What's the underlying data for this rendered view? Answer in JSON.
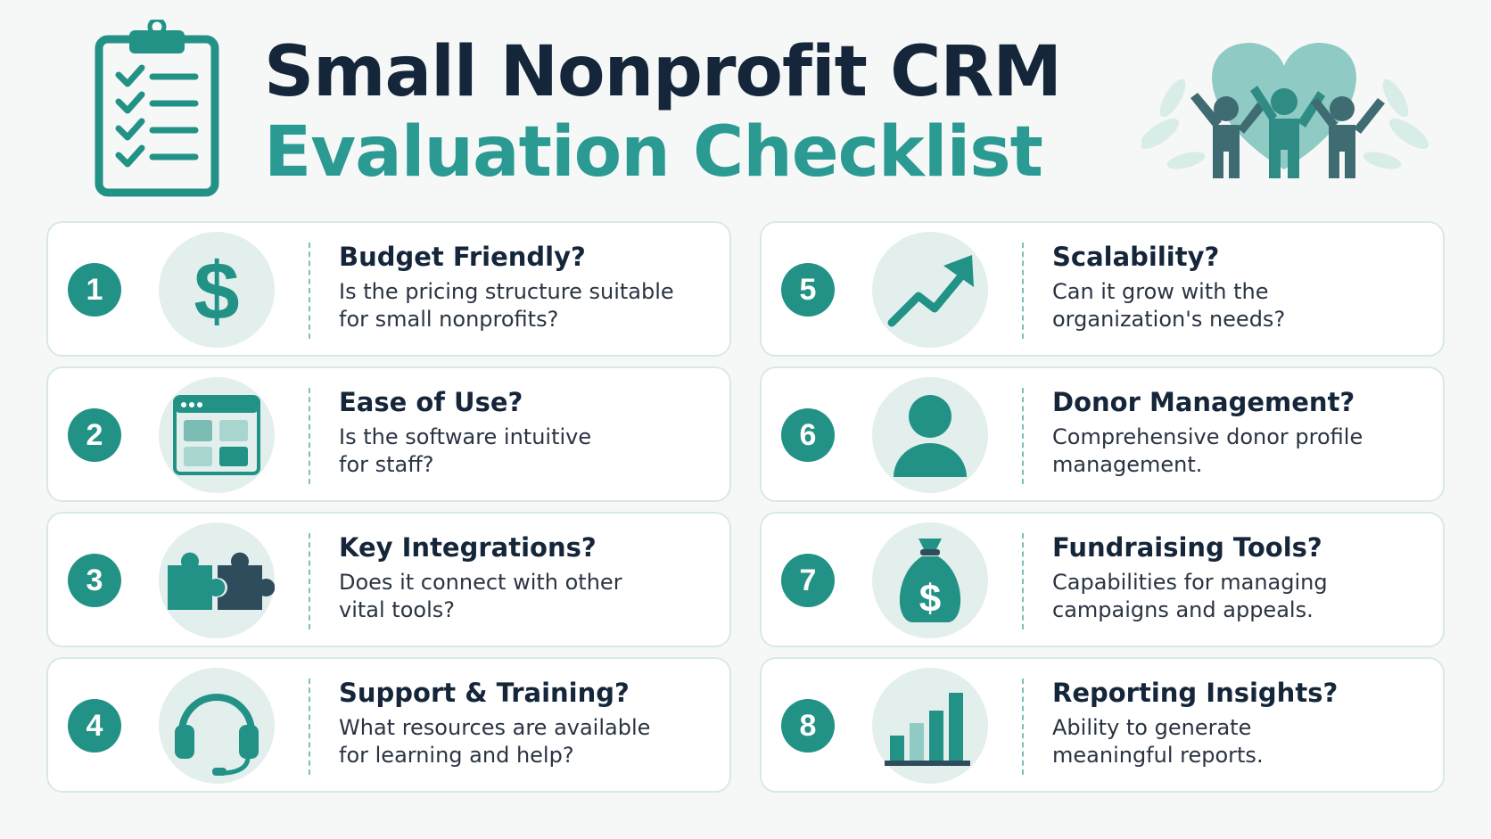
{
  "title": {
    "line1": "Small Nonprofit CRM",
    "line2": "Evaluation Checklist"
  },
  "colors": {
    "accent": "#229287",
    "accent_light": "#e3efec",
    "dark": "#15263a",
    "teal_text": "#2a9a92"
  },
  "icons": {
    "header_left": "clipboard-checklist-icon",
    "header_right": "community-heart-icon"
  },
  "items": [
    {
      "number": "1",
      "title": "Budget Friendly?",
      "desc1": "Is the pricing structure suitable",
      "desc2": "for small nonprofits?",
      "icon": "dollar-icon"
    },
    {
      "number": "2",
      "title": "Ease of Use?",
      "desc1": "Is the software intuitive",
      "desc2": "for staff?",
      "icon": "browser-window-icon"
    },
    {
      "number": "3",
      "title": "Key Integrations?",
      "desc1": "Does it connect with other",
      "desc2": "vital tools?",
      "icon": "puzzle-icon"
    },
    {
      "number": "4",
      "title": "Support & Training?",
      "desc1": "What resources are available",
      "desc2": "for learning and help?",
      "icon": "headset-icon"
    },
    {
      "number": "5",
      "title": "Scalability?",
      "desc1": "Can it grow with the",
      "desc2": "organization's needs?",
      "icon": "growth-arrow-icon"
    },
    {
      "number": "6",
      "title": "Donor Management?",
      "desc1": "Comprehensive donor profile",
      "desc2": "management.",
      "icon": "person-icon"
    },
    {
      "number": "7",
      "title": "Fundraising Tools?",
      "desc1": "Capabilities for managing",
      "desc2": "campaigns and appeals.",
      "icon": "money-bag-icon"
    },
    {
      "number": "8",
      "title": "Reporting Insights?",
      "desc1": "Ability to generate",
      "desc2": "meaningful reports.",
      "icon": "bar-chart-icon"
    }
  ]
}
